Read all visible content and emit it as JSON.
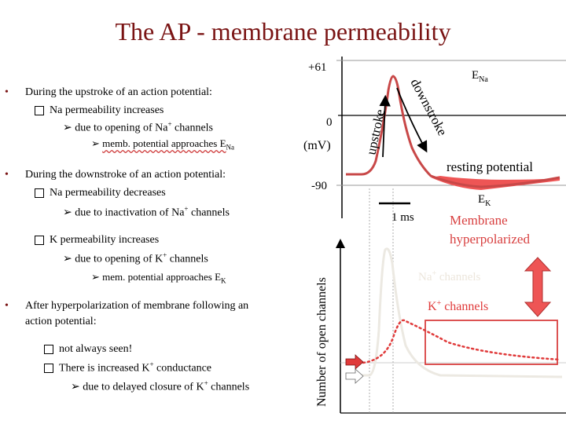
{
  "title": "The AP - membrane permeability",
  "bullets": {
    "b1": "During the upstroke of an action potential:",
    "b1_s1": "Na permeability increases",
    "b1_s1_a": "due to opening of Na",
    "b1_s1_a_sup": "+",
    "b1_s1_a_end": " channels",
    "b1_s1_a_b": "memb. potential approaches E",
    "b1_s1_a_b_sub": "Na",
    "b2": "During the  downstroke of an action potential:",
    "b2_s1": "Na permeability decreases",
    "b2_s1_a": "due to inactivation of Na",
    "b2_s1_a_sup": "+",
    "b2_s1_a_end": " channels",
    "b2_s2": "K permeability increases",
    "b2_s2_a": "due to opening of K",
    "b2_s2_a_sup": "+",
    "b2_s2_a_end": " channels",
    "b2_s2_a_b": "mem. potential approaches E",
    "b2_s2_a_b_sub": "K",
    "b3_l1": "After hyperpolarization of membrane following an",
    "b3_l2": "action potential:",
    "b3_s1": "not always seen!",
    "b3_s2": "There is increased K",
    "b3_s2_sup": "+",
    "b3_s2_end": " conductance",
    "b3_s2_a": "due to delayed closure of K",
    "b3_s2_a_sup": "+",
    "b3_s2_a_end": " channels"
  },
  "diagram": {
    "y_top": "+61",
    "y_zero": "0",
    "y_unit": "(mV)",
    "y_bottom": "-90",
    "e_na": "E",
    "e_na_sub": "Na",
    "e_k": "E",
    "e_k_sub": "K",
    "upstroke": "upstroke",
    "downstroke": "downstroke",
    "resting": "resting potential",
    "scale_bar": "1 ms",
    "hyper_l1": "Membrane",
    "hyper_l2": "hyperpolarized",
    "channels_axis": "Number of open channels",
    "na_channels": "Na",
    "na_channels_sup": "+",
    "na_channels_end": " channels",
    "k_channels": "K",
    "k_channels_sup": "+",
    "k_channels_end": " channels"
  },
  "colors": {
    "title": "#7a1414",
    "trace": "#c84848",
    "hyper_fill": "#ee5555",
    "k_text": "#e03a3a",
    "na_trace": "#ece9e2"
  }
}
